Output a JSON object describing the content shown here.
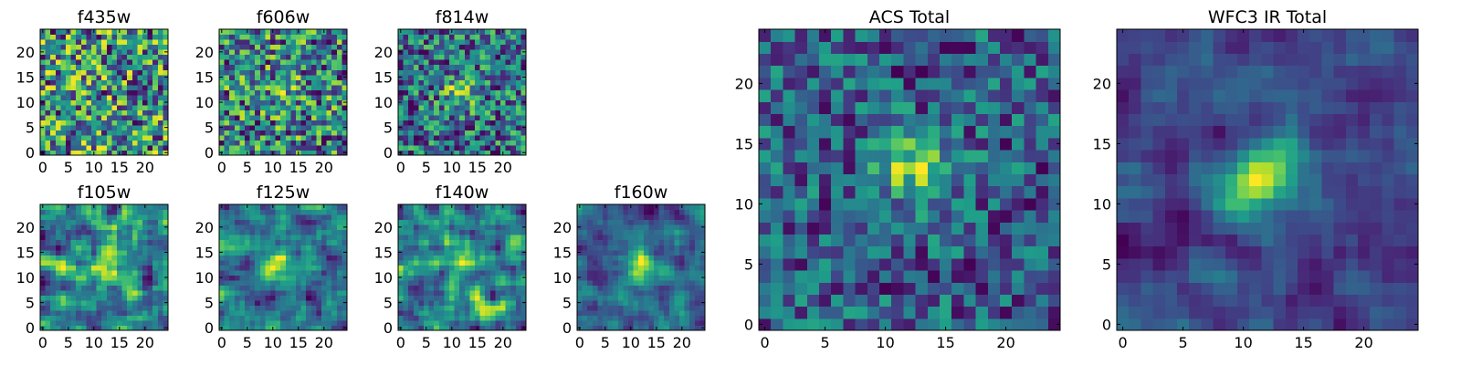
{
  "chart_data": [
    {
      "type": "heatmap",
      "title": "f435w",
      "colormap": "viridis",
      "xlim": [
        0,
        25
      ],
      "ylim": [
        0,
        25
      ],
      "xticks": [
        "0",
        "5",
        "10",
        "15",
        "20"
      ],
      "yticks": [
        "0",
        "5",
        "10",
        "15",
        "20"
      ],
      "pattern": {
        "grid": 25,
        "seed": 435,
        "smooth": 0,
        "blob": 0.0,
        "center": [
          12,
          12
        ]
      }
    },
    {
      "type": "heatmap",
      "title": "f606w",
      "colormap": "viridis",
      "xlim": [
        0,
        25
      ],
      "ylim": [
        0,
        25
      ],
      "xticks": [
        "0",
        "5",
        "10",
        "15",
        "20"
      ],
      "yticks": [
        "0",
        "5",
        "10",
        "15",
        "20"
      ],
      "pattern": {
        "grid": 25,
        "seed": 606,
        "smooth": 0,
        "blob": 0.2,
        "center": [
          12,
          12
        ]
      }
    },
    {
      "type": "heatmap",
      "title": "f814w",
      "colormap": "viridis",
      "xlim": [
        0,
        25
      ],
      "ylim": [
        0,
        25
      ],
      "xticks": [
        "0",
        "5",
        "10",
        "15",
        "20"
      ],
      "yticks": [
        "0",
        "5",
        "10",
        "15",
        "20"
      ],
      "pattern": {
        "grid": 25,
        "seed": 814,
        "smooth": 0,
        "blob": 0.5,
        "center": [
          12,
          12
        ]
      }
    },
    {
      "type": "heatmap",
      "title": "f105w",
      "colormap": "viridis",
      "xlim": [
        0,
        25
      ],
      "ylim": [
        0,
        25
      ],
      "xticks": [
        "0",
        "5",
        "10",
        "15",
        "20"
      ],
      "yticks": [
        "0",
        "5",
        "10",
        "15",
        "20"
      ],
      "pattern": {
        "grid": 25,
        "seed": 105,
        "smooth": 1,
        "blob": 0.4,
        "center": [
          12,
          12
        ]
      }
    },
    {
      "type": "heatmap",
      "title": "f125w",
      "colormap": "viridis",
      "xlim": [
        0,
        25
      ],
      "ylim": [
        0,
        25
      ],
      "xticks": [
        "0",
        "5",
        "10",
        "15",
        "20"
      ],
      "yticks": [
        "0",
        "5",
        "10",
        "15",
        "20"
      ],
      "pattern": {
        "grid": 25,
        "seed": 125,
        "smooth": 1,
        "blob": 0.5,
        "center": [
          12,
          12
        ]
      }
    },
    {
      "type": "heatmap",
      "title": "f140w",
      "colormap": "viridis",
      "xlim": [
        0,
        25
      ],
      "ylim": [
        0,
        25
      ],
      "xticks": [
        "0",
        "5",
        "10",
        "15",
        "20"
      ],
      "yticks": [
        "0",
        "5",
        "10",
        "15",
        "20"
      ],
      "pattern": {
        "grid": 25,
        "seed": 140,
        "smooth": 1,
        "blob": 0.4,
        "center": [
          12,
          12
        ]
      }
    },
    {
      "type": "heatmap",
      "title": "f160w",
      "colormap": "viridis",
      "xlim": [
        0,
        25
      ],
      "ylim": [
        0,
        25
      ],
      "xticks": [
        "0",
        "5",
        "10",
        "15",
        "20"
      ],
      "yticks": [
        "0",
        "5",
        "10",
        "15",
        "20"
      ],
      "pattern": {
        "grid": 25,
        "seed": 160,
        "smooth": 1,
        "blob": 0.9,
        "center": [
          12,
          12
        ]
      }
    },
    {
      "type": "heatmap",
      "title": "ACS Total",
      "colormap": "viridis",
      "xlim": [
        0,
        25
      ],
      "ylim": [
        0,
        25
      ],
      "xticks": [
        "0",
        "5",
        "10",
        "15",
        "20"
      ],
      "yticks": [
        "0",
        "5",
        "10",
        "15",
        "20"
      ],
      "pattern": {
        "grid": 25,
        "seed": 999,
        "smooth": 0,
        "blob": 0.7,
        "center": [
          12,
          13
        ]
      }
    },
    {
      "type": "heatmap",
      "title": "WFC3 IR Total",
      "colormap": "viridis",
      "xlim": [
        0,
        25
      ],
      "ylim": [
        0,
        25
      ],
      "xticks": [
        "0",
        "5",
        "10",
        "15",
        "20"
      ],
      "yticks": [
        "0",
        "5",
        "10",
        "15",
        "20"
      ],
      "pattern": {
        "grid": 25,
        "seed": 3,
        "smooth": 1,
        "blob": 1.3,
        "center": [
          11,
          12
        ]
      }
    }
  ]
}
